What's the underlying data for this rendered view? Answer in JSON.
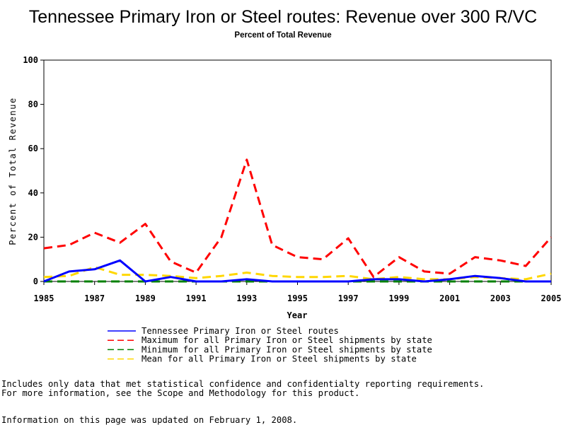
{
  "chart_data": {
    "type": "line",
    "title": "Tennessee Primary Iron or Steel routes: Revenue over 300 R/VC",
    "subtitle": "Percent of Total Revenue",
    "xlabel": "Year",
    "ylabel": "Percent of Total Revenue",
    "xlim": [
      1985,
      2005
    ],
    "ylim": [
      0,
      100
    ],
    "x_ticks": [
      "1985",
      "1987",
      "1989",
      "1991",
      "1993",
      "1995",
      "1997",
      "1999",
      "2001",
      "2003",
      "2005"
    ],
    "y_ticks": [
      "0",
      "20",
      "40",
      "60",
      "80",
      "100"
    ],
    "grid": false,
    "legend_position": "bottom",
    "x": [
      1985,
      1986,
      1987,
      1988,
      1989,
      1990,
      1991,
      1992,
      1993,
      1994,
      1995,
      1996,
      1997,
      1998,
      1999,
      2000,
      2001,
      2002,
      2003,
      2004,
      2005
    ],
    "series": [
      {
        "name": "Tennessee Primary Iron or Steel routes",
        "color": "#0000ff",
        "style": "solid",
        "values": [
          0,
          4.5,
          5.5,
          9.5,
          0,
          2.0,
          0,
          0,
          1.0,
          0,
          0,
          0,
          0,
          1.0,
          1.0,
          0,
          1.0,
          2.5,
          1.5,
          0,
          0
        ]
      },
      {
        "name": "Maximum for all Primary Iron or Steel shipments by state",
        "color": "#ff0000",
        "style": "dashed",
        "values": [
          15.0,
          16.5,
          22.0,
          17.5,
          26.0,
          9.0,
          4.0,
          20.0,
          55.0,
          16.5,
          11.0,
          10.0,
          19.5,
          2.0,
          11.0,
          4.5,
          3.5,
          11.0,
          9.5,
          7.0,
          20.0
        ]
      },
      {
        "name": "Minimum for all Primary Iron or Steel shipments by state",
        "color": "#008000",
        "style": "dashed",
        "values": [
          0,
          0,
          0,
          0,
          0,
          0,
          0,
          0,
          0,
          0,
          0,
          0,
          0,
          0,
          0,
          0,
          0,
          0,
          0,
          0,
          0
        ]
      },
      {
        "name": "Mean for all Primary Iron or Steel shipments by state",
        "color": "#ffd700",
        "style": "dashed",
        "values": [
          2.0,
          2.5,
          6.5,
          3.0,
          3.0,
          2.5,
          1.5,
          2.5,
          4.0,
          2.5,
          2.0,
          2.0,
          2.5,
          1.0,
          2.0,
          1.0,
          1.0,
          2.0,
          1.5,
          1.0,
          3.5
        ]
      }
    ]
  },
  "notes": {
    "line1": "Includes only data that met statistical confidence and confidentialty reporting requirements.",
    "line2": "For more information, see the Scope and Methodology for this product.",
    "line3": "Information on this page was updated on February 1, 2008."
  }
}
